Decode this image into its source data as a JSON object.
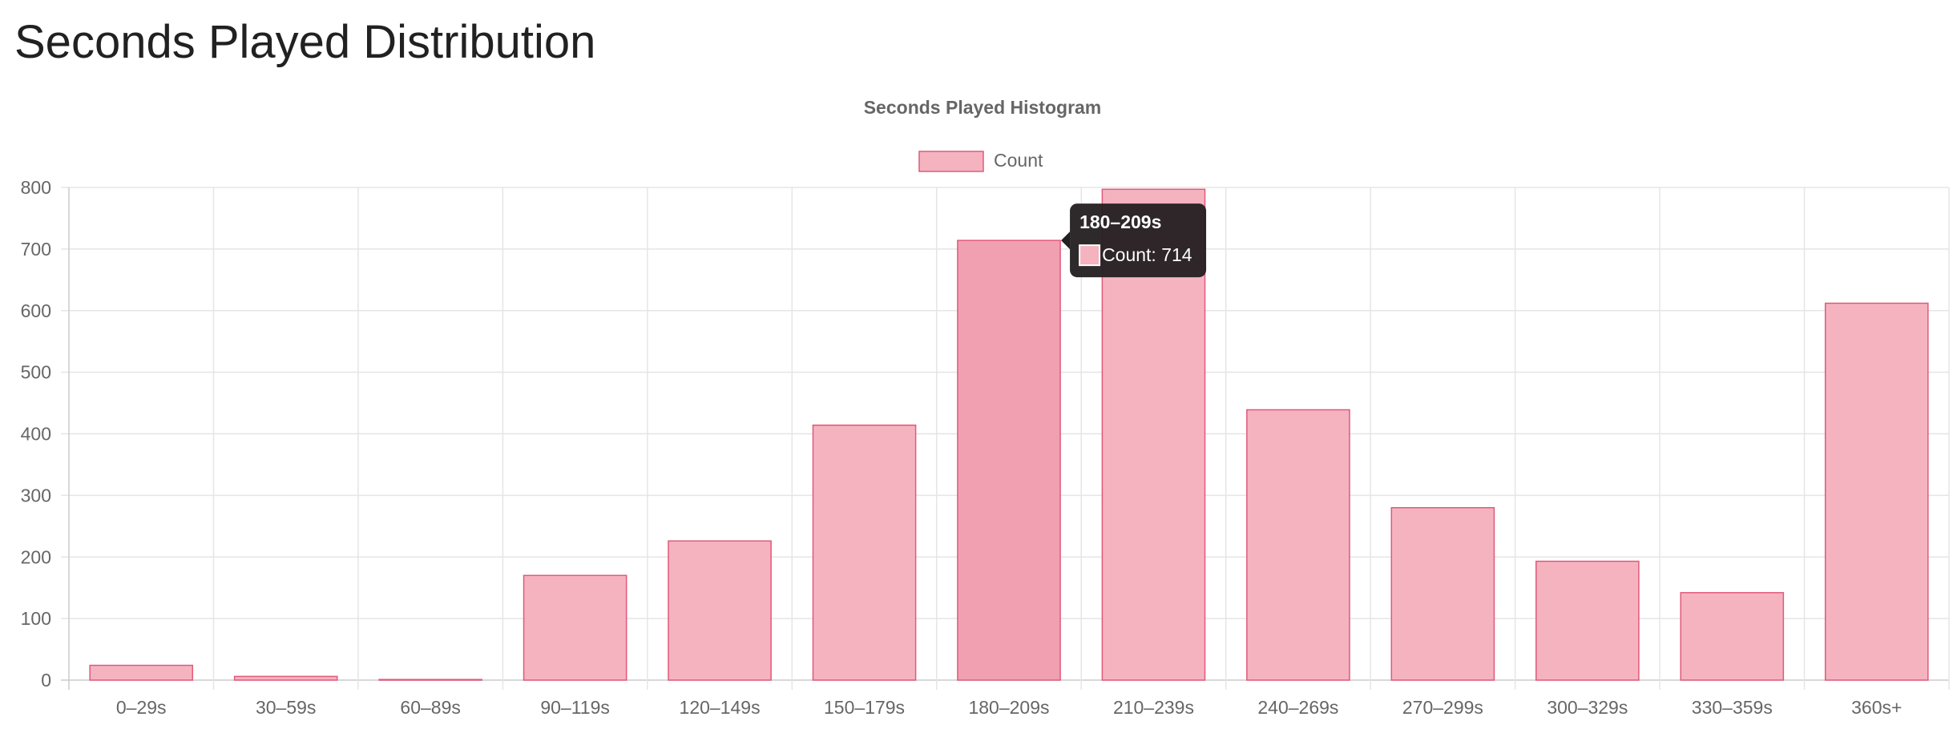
{
  "page": {
    "title": "Seconds Played Distribution"
  },
  "chart_data": {
    "type": "bar",
    "title": "Seconds Played Histogram",
    "categories": [
      "0–29s",
      "30–59s",
      "60–89s",
      "90–119s",
      "120–149s",
      "150–179s",
      "180–209s",
      "210–239s",
      "240–269s",
      "270–299s",
      "300–329s",
      "330–359s",
      "360s+"
    ],
    "series": [
      {
        "name": "Count",
        "values": [
          24,
          6,
          1,
          170,
          226,
          414,
          714,
          797,
          439,
          280,
          193,
          142,
          612
        ]
      }
    ],
    "xlabel": "",
    "ylabel": "",
    "ylim": [
      0,
      800
    ],
    "yticks": [
      0,
      100,
      200,
      300,
      400,
      500,
      600,
      700,
      800
    ],
    "grid": true,
    "legend": "top-center",
    "tooltip": {
      "category_index": 6,
      "title": "180–209s",
      "label": "Count: 714"
    },
    "colors": {
      "bar_fill": "#f5b3c0",
      "bar_fill_hover": "#f1a0b1",
      "bar_border": "#e05a7a",
      "grid": "#e5e5e5",
      "axis": "#cccccc",
      "tooltip_bg": "#231f20"
    }
  }
}
